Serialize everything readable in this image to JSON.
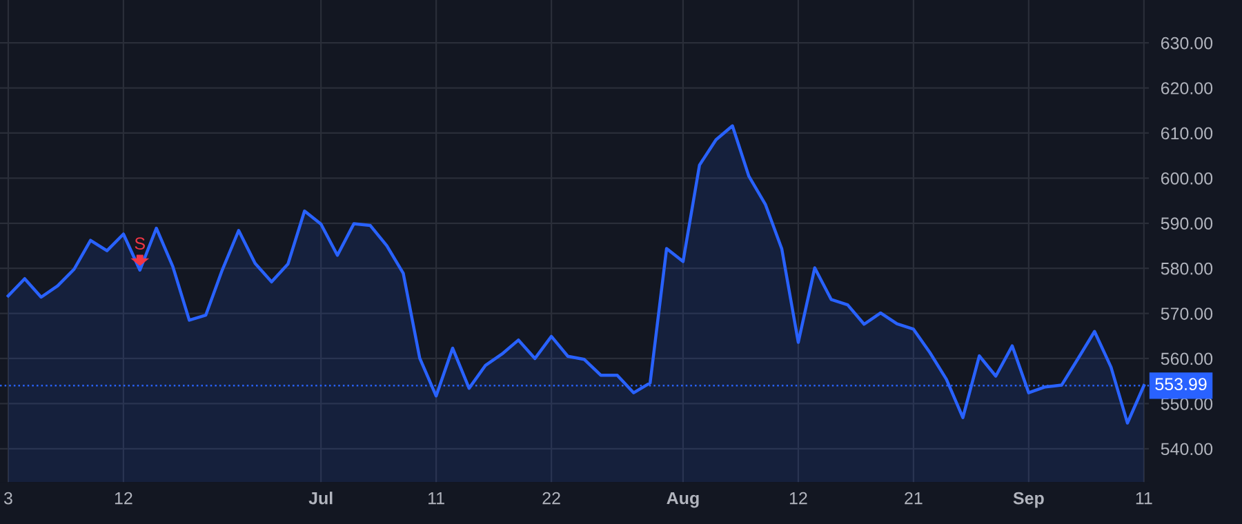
{
  "chart_data": {
    "type": "area",
    "categories": [
      "3",
      null,
      null,
      null,
      null,
      null,
      null,
      "12",
      null,
      null,
      null,
      null,
      null,
      null,
      null,
      null,
      null,
      null,
      null,
      "Jul",
      null,
      null,
      null,
      null,
      null,
      null,
      "11",
      null,
      null,
      null,
      null,
      null,
      null,
      "22",
      null,
      null,
      null,
      null,
      null,
      null,
      null,
      "Aug",
      null,
      null,
      null,
      null,
      null,
      null,
      "12",
      null,
      null,
      null,
      null,
      null,
      null,
      "21",
      null,
      null,
      null,
      null,
      null,
      null,
      "Sep",
      null,
      null,
      null,
      null,
      null,
      null,
      "11"
    ],
    "series": [
      {
        "color": "#2962ff",
        "values": [
          573.9,
          577.7,
          573.6,
          576.1,
          579.8,
          586.2,
          583.9,
          587.6,
          579.6,
          588.9,
          580.4,
          568.5,
          569.6,
          579.6,
          588.4,
          581.1,
          577.0,
          581.0,
          592.7,
          589.8,
          582.9,
          589.9,
          589.5,
          585.0,
          578.9,
          560.1,
          551.7,
          562.3,
          553.4,
          558.5,
          561.0,
          564.1,
          560.0,
          564.9,
          560.5,
          559.8,
          556.3,
          556.3,
          552.4,
          554.6,
          584.4,
          581.5,
          602.9,
          608.5,
          611.6,
          600.4,
          594.2,
          584.3,
          563.6,
          580.1,
          573.1,
          571.9,
          567.6,
          570.1,
          567.7,
          566.5,
          561.3,
          555.4,
          546.9,
          560.6,
          556.1,
          562.8,
          552.4,
          553.7,
          554.1,
          560.0,
          566.0,
          558.1,
          545.7,
          553.99
        ]
      }
    ],
    "ylim": [
      532.6,
      639.5
    ],
    "yticks": [
      {
        "value": 540,
        "label": "540.00"
      },
      {
        "value": 550,
        "label": "550.00"
      },
      {
        "value": 560,
        "label": "560.00"
      },
      {
        "value": 570,
        "label": "570.00"
      },
      {
        "value": 580,
        "label": "580.00"
      },
      {
        "value": 590,
        "label": "590.00"
      },
      {
        "value": 600,
        "label": "600.00"
      },
      {
        "value": 610,
        "label": "610.00"
      },
      {
        "value": 620,
        "label": "620.00"
      },
      {
        "value": 630,
        "label": "630.00"
      }
    ],
    "ref_lines": [
      {
        "axis": "y",
        "value": 553.99,
        "label": "553.99",
        "color": "#2962ff",
        "line_style": "dotted"
      }
    ],
    "annotations": [
      {
        "text": "S",
        "y": 579.6
      }
    ],
    "grid": true,
    "marker": "none",
    "line_style": "solid"
  }
}
